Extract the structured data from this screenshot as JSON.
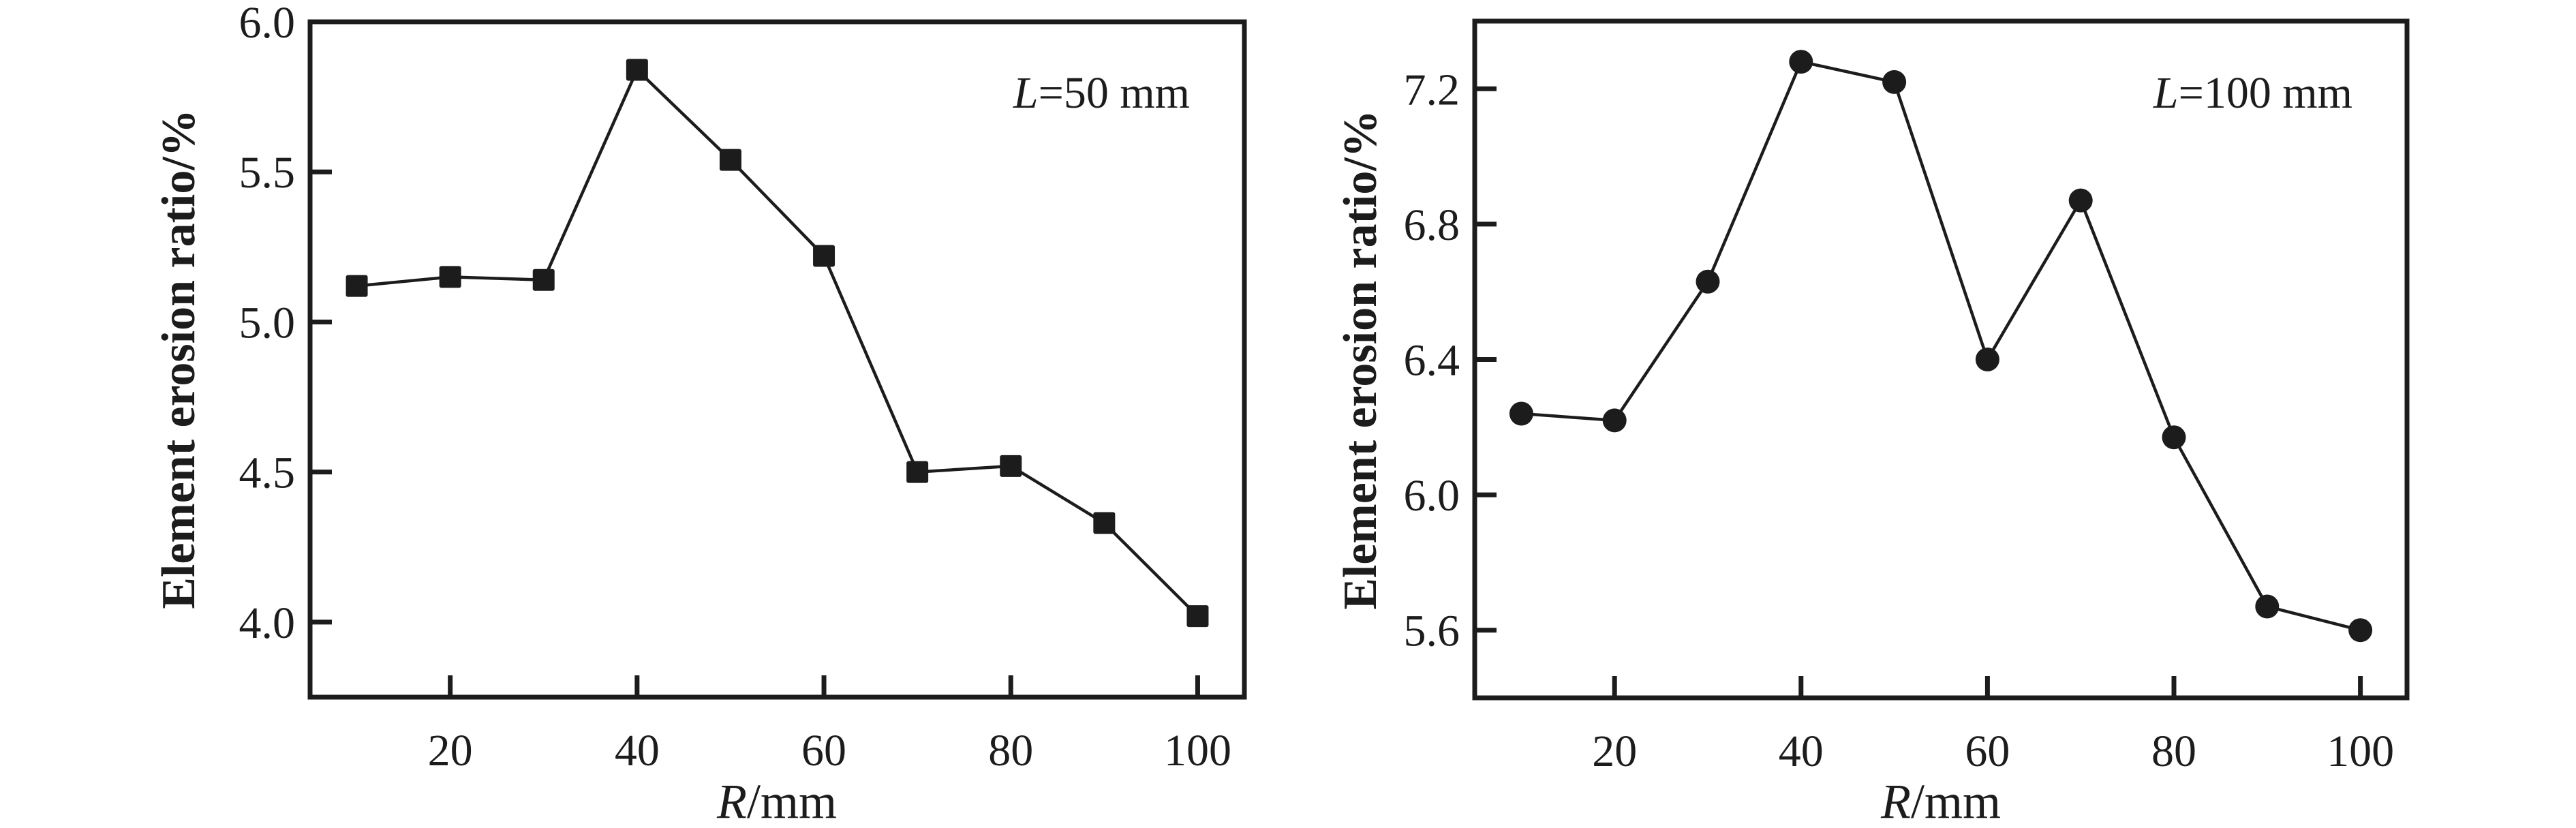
{
  "figure": {
    "background": "#ffffff",
    "ink_color": "#1c1c1c"
  },
  "chart_data": [
    {
      "type": "line",
      "ylabel": "Element erosion ratio/%",
      "xlabel": {
        "italic": "R",
        "rest": "/mm"
      },
      "annotation": {
        "italic": "L",
        "rest": "=50 mm"
      },
      "marker": "square",
      "x": [
        10,
        20,
        30,
        40,
        50,
        60,
        70,
        80,
        90,
        100
      ],
      "values": [
        5.12,
        5.15,
        5.14,
        5.84,
        5.54,
        5.22,
        4.5,
        4.52,
        4.33,
        4.02
      ],
      "xlim": [
        5,
        105
      ],
      "ylim": [
        3.75,
        6.0
      ],
      "xticks": [
        20,
        40,
        60,
        80,
        100
      ],
      "yticks": [
        4.0,
        4.5,
        5.0,
        5.5,
        6.0
      ],
      "ytick_decimals": 1,
      "grid": false,
      "legend": "none",
      "line_color": "#1c1c1c",
      "marker_color": "#1c1c1c"
    },
    {
      "type": "line",
      "ylabel": "Element erosion ratio/%",
      "xlabel": {
        "italic": "R",
        "rest": "/mm"
      },
      "annotation": {
        "italic": "L",
        "rest": "=100 mm"
      },
      "marker": "circle",
      "x": [
        10,
        20,
        30,
        40,
        50,
        60,
        70,
        80,
        90,
        100
      ],
      "values": [
        6.24,
        6.22,
        6.63,
        7.28,
        7.22,
        6.4,
        6.87,
        6.17,
        5.67,
        5.6
      ],
      "xlim": [
        5,
        105
      ],
      "ylim": [
        5.4,
        7.4
      ],
      "xticks": [
        20,
        40,
        60,
        80,
        100
      ],
      "yticks": [
        5.6,
        6.0,
        6.4,
        6.8,
        7.2
      ],
      "ytick_decimals": 1,
      "grid": false,
      "legend": "none",
      "line_color": "#1c1c1c",
      "marker_color": "#1c1c1c"
    }
  ]
}
